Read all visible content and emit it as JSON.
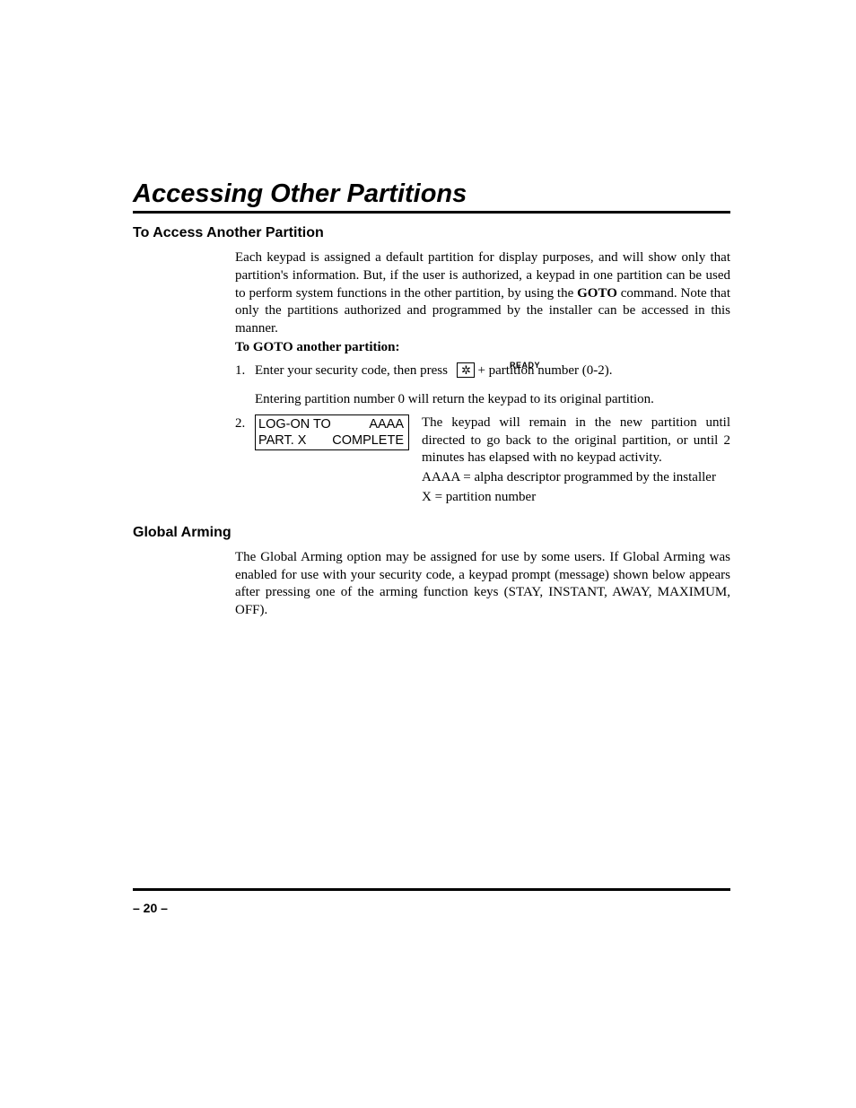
{
  "main_title": "Accessing Other Partitions",
  "section1": {
    "heading": "To Access Another Partition",
    "para1_pre": "Each keypad is assigned a default partition for display purposes, and will show only that partition's information. But, if the user is authorized, a keypad in one partition can be used to perform system functions in the other partition, by using the ",
    "goto": "GOTO",
    "para1_post": " command. Note that only the partitions authorized and programmed by the installer can be accessed in this manner.",
    "bold_instruction": "To GOTO another partition:",
    "ready_label": "READY",
    "step1_num": "1.",
    "step1_pre": "Enter your security code, then press ",
    "key_symbol": "✲",
    "step1_post": "  + partition number (0-2).",
    "step1_note": "Entering partition number 0 will return the keypad to its original partition.",
    "step2_num": "2.",
    "display_line1_a": "LOG-ON TO",
    "display_line1_b": "AAAA",
    "display_line2_a": "PART. X",
    "display_line2_b": "COMPLETE",
    "step2_para": "The keypad will remain in the new partition until directed to go back to the original partition, or until 2 minutes has elapsed with no keypad activity.",
    "step2_sub1": "AAAA = alpha descriptor programmed by the installer",
    "step2_sub2": "X = partition number"
  },
  "section2": {
    "heading": "Global Arming",
    "para": "The Global Arming option may be assigned for use by some users. If Global Arming was enabled for use with your security code, a keypad prompt (message) shown below appears after pressing one of the arming function keys (STAY, INSTANT, AWAY, MAXIMUM, OFF)."
  },
  "page_number": "– 20 –"
}
